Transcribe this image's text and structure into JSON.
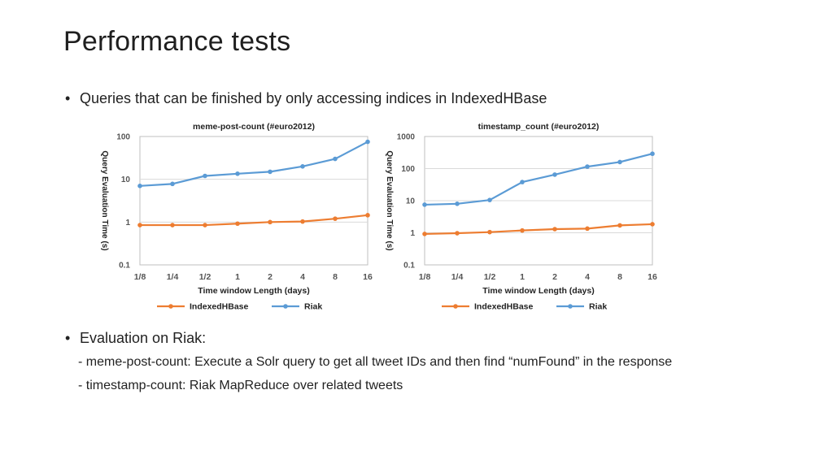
{
  "slide": {
    "title": "Performance tests",
    "bullets": [
      "Queries that can be finished by only accessing indices in IndexedHBase",
      "Evaluation on Riak:"
    ],
    "sublines": [
      "- meme-post-count: Execute a Solr query to get all tweet IDs and then find “numFound” in the response",
      "- timestamp-count: Riak MapReduce over related tweets"
    ]
  },
  "colors": {
    "indexedhbase": "#ED7D31",
    "riak": "#5B9BD5"
  },
  "chart_data": [
    {
      "type": "line",
      "title": "meme-post-count (#euro2012)",
      "xlabel": "Time window Length (days)",
      "ylabel": "Query Evaluation Time (s)",
      "yscale": "log",
      "ylim": [
        0.1,
        100
      ],
      "yticks": [
        "0.1",
        "1",
        "10",
        "100"
      ],
      "categories": [
        "1/8",
        "1/4",
        "1/2",
        "1",
        "2",
        "4",
        "8",
        "16"
      ],
      "grid": true,
      "legend": "bottom",
      "series": [
        {
          "name": "IndexedHBase",
          "color": "#ED7D31",
          "values": [
            0.85,
            0.85,
            0.85,
            0.92,
            1.0,
            1.03,
            1.2,
            1.45
          ]
        },
        {
          "name": "Riak",
          "color": "#5B9BD5",
          "values": [
            7,
            7.8,
            12,
            13.5,
            15,
            20,
            30,
            75
          ]
        }
      ]
    },
    {
      "type": "line",
      "title": "timestamp_count (#euro2012)",
      "xlabel": "Time window Length (days)",
      "ylabel": "Query Evaluation Time (s)",
      "yscale": "log",
      "ylim": [
        0.1,
        1000
      ],
      "yticks": [
        "0.1",
        "1",
        "10",
        "100",
        "1000"
      ],
      "categories": [
        "1/8",
        "1/4",
        "1/2",
        "1",
        "2",
        "4",
        "8",
        "16"
      ],
      "grid": true,
      "legend": "bottom",
      "series": [
        {
          "name": "IndexedHBase",
          "color": "#ED7D31",
          "values": [
            0.92,
            0.97,
            1.05,
            1.18,
            1.3,
            1.35,
            1.7,
            1.85
          ]
        },
        {
          "name": "Riak",
          "color": "#5B9BD5",
          "values": [
            7.5,
            8,
            10.5,
            38,
            65,
            115,
            160,
            290
          ]
        }
      ]
    }
  ]
}
